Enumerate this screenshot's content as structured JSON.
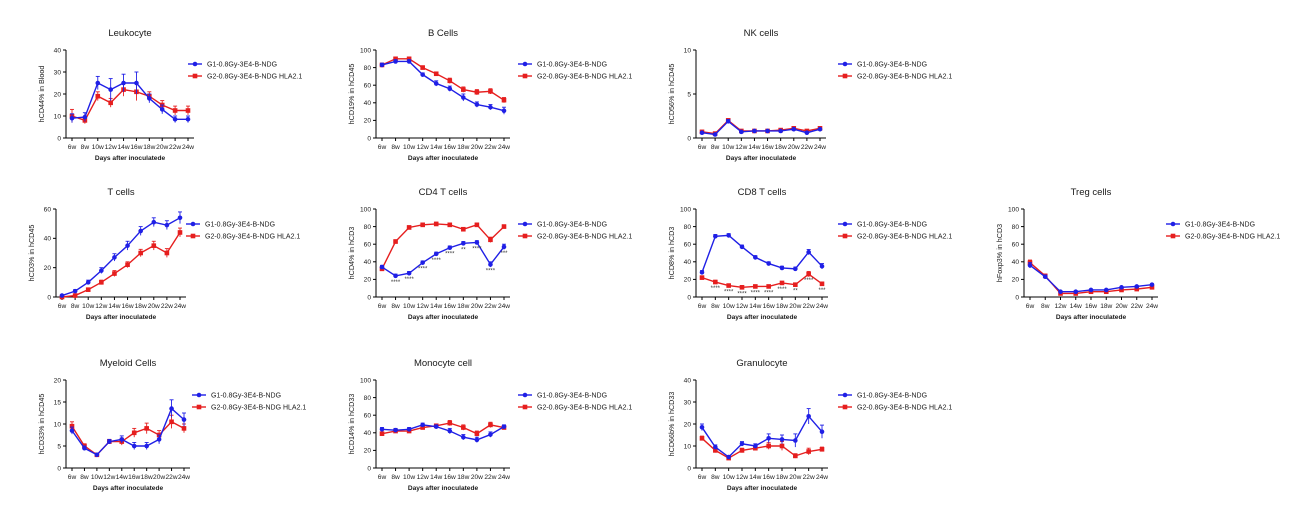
{
  "colors": {
    "g1": "#1f1fe6",
    "g2": "#e61e1e",
    "axis": "#000000"
  },
  "legend": {
    "g1": "G1-0.8Gy-3E4-B-NDG",
    "g2": "G2-0.8Gy-3E4-B-NDG HLA2.1"
  },
  "chart_data": [
    {
      "type": "line",
      "title": "Leukocyte",
      "ylabel": "hCD44% in Blood",
      "xlabel": "Days after inoculatede",
      "categories": [
        "6w",
        "8w",
        "10w",
        "12w",
        "14w",
        "16w",
        "18w",
        "20w",
        "22w",
        "24w"
      ],
      "ylim": [
        0,
        40
      ],
      "yticks": [
        0,
        10,
        20,
        30,
        40
      ],
      "series": [
        {
          "name": "G1-0.8Gy-3E4-B-NDG",
          "values": [
            9,
            9.5,
            25,
            22,
            25,
            25,
            18,
            13,
            8.5,
            8.5
          ],
          "err": [
            2,
            2,
            3,
            5,
            4,
            5,
            2,
            2,
            1.5,
            1.5
          ]
        },
        {
          "name": "G2-0.8Gy-3E4-B-NDG HLA2.1",
          "values": [
            10,
            8,
            19,
            16,
            22,
            21,
            19,
            15,
            12.5,
            12.5
          ],
          "err": [
            3,
            1.5,
            2,
            2,
            3,
            4,
            2,
            2,
            2,
            2
          ]
        }
      ],
      "annotations": []
    },
    {
      "type": "line",
      "title": "B Cells",
      "ylabel": "hCD19% in hCD45",
      "xlabel": "Days after inoculatede",
      "categories": [
        "6w",
        "8w",
        "10w",
        "12w",
        "14w",
        "16w",
        "18w",
        "20w",
        "22w",
        "24w"
      ],
      "ylim": [
        0,
        100
      ],
      "yticks": [
        0,
        20,
        40,
        60,
        80,
        100
      ],
      "series": [
        {
          "name": "G1-0.8Gy-3E4-B-NDG",
          "values": [
            83,
            87,
            87,
            72,
            62,
            56,
            46,
            38,
            35,
            31
          ],
          "err": [
            2,
            2,
            2,
            2,
            3,
            3,
            4,
            3,
            3,
            4
          ]
        },
        {
          "name": "G2-0.8Gy-3E4-B-NDG HLA2.1",
          "values": [
            83,
            90,
            90,
            80,
            73,
            65,
            55,
            52,
            53,
            43
          ],
          "err": [
            2,
            2,
            2,
            2,
            2,
            3,
            3,
            3,
            3,
            3
          ]
        }
      ],
      "annotations": []
    },
    {
      "type": "line",
      "title": "NK  cells",
      "ylabel": "hCD56% in hCD45",
      "xlabel": "Days after inoculatede",
      "categories": [
        "6w",
        "8w",
        "10w",
        "12w",
        "14w",
        "16w",
        "18w",
        "20w",
        "22w",
        "24w"
      ],
      "ylim": [
        0,
        10
      ],
      "yticks": [
        0,
        5,
        10
      ],
      "series": [
        {
          "name": "G1-0.8Gy-3E4-B-NDG",
          "values": [
            0.6,
            0.4,
            1.9,
            0.7,
            0.8,
            0.8,
            0.8,
            1,
            0.6,
            1
          ],
          "err": [
            0.1,
            0.1,
            0.2,
            0.1,
            0.1,
            0.1,
            0.1,
            0.1,
            0.1,
            0.1
          ]
        },
        {
          "name": "G2-0.8Gy-3E4-B-NDG HLA2.1",
          "values": [
            0.7,
            0.5,
            2.0,
            0.8,
            0.8,
            0.8,
            0.9,
            1.1,
            0.8,
            1.1
          ],
          "err": [
            0.1,
            0.1,
            0.2,
            0.1,
            0.1,
            0.1,
            0.1,
            0.1,
            0.1,
            0.1
          ]
        }
      ],
      "annotations": []
    },
    {
      "type": "line",
      "title": "T cells",
      "ylabel": "hCD3% in hCD45",
      "xlabel": "Days after inoculatede",
      "categories": [
        "6w",
        "8w",
        "10w",
        "12w",
        "14w",
        "16w",
        "18w",
        "20w",
        "22w",
        "24w"
      ],
      "ylim": [
        0,
        60
      ],
      "yticks": [
        0,
        20,
        40,
        60
      ],
      "series": [
        {
          "name": "G1-0.8Gy-3E4-B-NDG",
          "values": [
            1,
            4,
            10,
            18,
            27,
            35,
            45,
            51,
            49,
            54
          ],
          "err": [
            0.5,
            1,
            1.5,
            2,
            2.5,
            3,
            3,
            3,
            3,
            4
          ]
        },
        {
          "name": "G2-0.8Gy-3E4-B-NDG HLA2.1",
          "values": [
            0,
            1,
            5,
            10,
            16,
            22,
            30,
            35,
            30,
            44
          ],
          "err": [
            0.5,
            0.5,
            1,
            1.5,
            2,
            2,
            2.5,
            3,
            3,
            3
          ]
        }
      ],
      "annotations": []
    },
    {
      "type": "line",
      "title": "CD4 T cells",
      "ylabel": "hCD4% in hCD3",
      "xlabel": "Days after inoculatede",
      "categories": [
        "6w",
        "8w",
        "10w",
        "12w",
        "14w",
        "16w",
        "18w",
        "20w",
        "22w",
        "24w"
      ],
      "ylim": [
        0,
        100
      ],
      "yticks": [
        0,
        20,
        40,
        60,
        80,
        100
      ],
      "series": [
        {
          "name": "G1-0.8Gy-3E4-B-NDG",
          "values": [
            34,
            24,
            27,
            39,
            49,
            56,
            61,
            62,
            37,
            57
          ],
          "err": [
            2,
            2,
            2,
            2,
            2,
            2,
            2,
            2,
            3,
            3
          ]
        },
        {
          "name": "G2-0.8Gy-3E4-B-NDG HLA2.1",
          "values": [
            32,
            63,
            79,
            82,
            83,
            82,
            77,
            82,
            65,
            80
          ],
          "err": [
            2,
            2,
            2,
            2,
            2,
            2,
            2,
            2,
            3,
            2
          ]
        }
      ],
      "annotations": [
        "****",
        "****",
        "****",
        "****",
        "****",
        "**",
        "****",
        "****",
        "***"
      ]
    },
    {
      "type": "line",
      "title": "CD8 T cells",
      "ylabel": "hCD8% in hCD3",
      "xlabel": "Days after inoculatede",
      "categories": [
        "6w",
        "8w",
        "10w",
        "12w",
        "14w",
        "16w",
        "18w",
        "20w",
        "22w",
        "24w"
      ],
      "ylim": [
        0,
        100
      ],
      "yticks": [
        0,
        20,
        40,
        60,
        80,
        100
      ],
      "series": [
        {
          "name": "G1-0.8Gy-3E4-B-NDG",
          "values": [
            28,
            69,
            70,
            57,
            45,
            38,
            33,
            32,
            51,
            35
          ],
          "err": [
            2,
            2,
            2,
            2,
            2,
            2,
            2,
            2,
            3,
            3
          ]
        },
        {
          "name": "G2-0.8Gy-3E4-B-NDG HLA2.1",
          "values": [
            22,
            17,
            13,
            11,
            12,
            12,
            16,
            14,
            26,
            15
          ],
          "err": [
            2,
            2,
            1,
            1,
            1,
            1,
            1,
            1,
            3,
            2
          ]
        }
      ],
      "annotations": [
        "****",
        "****",
        "****",
        "****",
        "****",
        "****",
        "**",
        "****",
        "***"
      ]
    },
    {
      "type": "line",
      "title": "Treg cells",
      "ylabel": "hFoxp3% in hCD3",
      "xlabel": "Days after inoculatede",
      "categories": [
        "6w",
        "8w",
        "12w",
        "14w",
        "16w",
        "18w",
        "20w",
        "22w",
        "24w"
      ],
      "ylim": [
        0,
        100
      ],
      "yticks": [
        0,
        20,
        40,
        60,
        80,
        100
      ],
      "series": [
        {
          "name": "G1-0.8Gy-3E4-B-NDG",
          "values": [
            36,
            23,
            6,
            6,
            8,
            8,
            11,
            12,
            14
          ],
          "err": [
            3,
            2,
            1,
            1,
            1,
            1,
            1,
            1,
            1
          ]
        },
        {
          "name": "G2-0.8Gy-3E4-B-NDG HLA2.1",
          "values": [
            39,
            24,
            4,
            4,
            6,
            6,
            8,
            9,
            11
          ],
          "err": [
            3,
            2,
            1,
            1,
            1,
            1,
            1,
            1,
            1
          ]
        }
      ],
      "annotations": []
    },
    {
      "type": "line",
      "title": "Myeloid Cells",
      "ylabel": "hCD33% in hCD45",
      "xlabel": "Days after inoculatede",
      "categories": [
        "6w",
        "8w",
        "10w",
        "12w",
        "14w",
        "16w",
        "18w",
        "20w",
        "22w",
        "24w"
      ],
      "ylim": [
        0,
        20
      ],
      "yticks": [
        0,
        5,
        10,
        15,
        20
      ],
      "series": [
        {
          "name": "G1-0.8Gy-3E4-B-NDG",
          "values": [
            8.5,
            4.5,
            3,
            6,
            6.5,
            5,
            5,
            6.5,
            13.5,
            11
          ],
          "err": [
            0.8,
            0.5,
            0.3,
            0.5,
            0.8,
            0.8,
            0.8,
            1,
            2,
            1.5
          ]
        },
        {
          "name": "G2-0.8Gy-3E4-B-NDG HLA2.1",
          "values": [
            9.5,
            5,
            3,
            6,
            6,
            8,
            9,
            7.5,
            10.5,
            9
          ],
          "err": [
            1,
            0.5,
            0.3,
            0.5,
            0.8,
            1,
            1.2,
            1,
            1.5,
            1
          ]
        }
      ],
      "annotations": []
    },
    {
      "type": "line",
      "title": "Monocyte cell",
      "ylabel": "hCD14% in hCD33",
      "xlabel": "Days after inoculatede",
      "categories": [
        "6w",
        "8w",
        "10w",
        "12w",
        "14w",
        "16w",
        "18w",
        "20w",
        "22w",
        "24w"
      ],
      "ylim": [
        0,
        100
      ],
      "yticks": [
        0,
        20,
        40,
        60,
        80,
        100
      ],
      "series": [
        {
          "name": "G1-0.8Gy-3E4-B-NDG",
          "values": [
            44,
            43,
            44,
            49,
            47,
            42,
            35,
            32,
            38,
            47
          ],
          "err": [
            2,
            2,
            2,
            2,
            2,
            3,
            3,
            3,
            3,
            2
          ]
        },
        {
          "name": "G2-0.8Gy-3E4-B-NDG HLA2.1",
          "values": [
            39,
            42,
            42,
            46,
            48,
            51,
            46,
            39,
            49,
            46
          ],
          "err": [
            2,
            2,
            2,
            2,
            2,
            3,
            3,
            3,
            3,
            2
          ]
        }
      ],
      "annotations": []
    },
    {
      "type": "line",
      "title": "Granulocyte",
      "ylabel": "hCD66b% in hCD33",
      "xlabel": "Days after inoculatede",
      "categories": [
        "6w",
        "8w",
        "10w",
        "12w",
        "14w",
        "16w",
        "18w",
        "20w",
        "22w",
        "24w"
      ],
      "ylim": [
        0,
        40
      ],
      "yticks": [
        0,
        10,
        20,
        30,
        40
      ],
      "series": [
        {
          "name": "G1-0.8Gy-3E4-B-NDG",
          "values": [
            18.5,
            9.5,
            5,
            11,
            10,
            13.5,
            13,
            12.5,
            23.5,
            16.5
          ],
          "err": [
            1.5,
            1,
            0.5,
            1,
            1,
            2,
            2,
            3,
            3.5,
            3
          ]
        },
        {
          "name": "G2-0.8Gy-3E4-B-NDG HLA2.1",
          "values": [
            13.5,
            8,
            4.5,
            8,
            9,
            10,
            10,
            5.5,
            7.5,
            8.5
          ],
          "err": [
            1,
            1,
            0.5,
            1,
            1,
            1.5,
            2,
            1,
            1.5,
            1
          ]
        }
      ],
      "annotations": []
    }
  ]
}
